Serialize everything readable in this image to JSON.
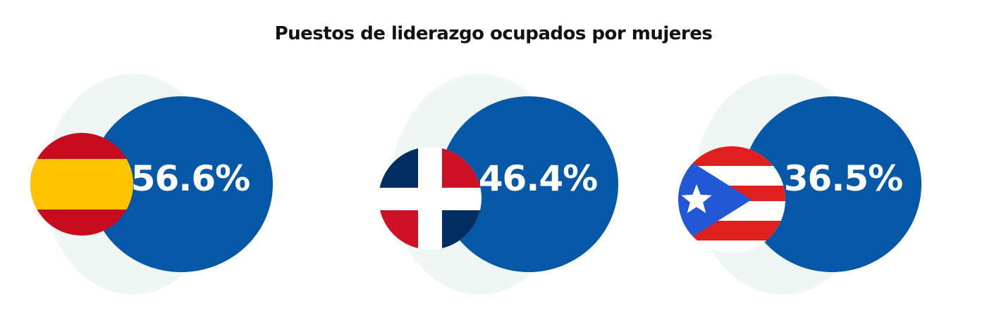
{
  "title": "Puestos de liderazgo ocupados por mujeres",
  "colors": {
    "circle": "#0557a7",
    "background_blob": "#eef7f3"
  },
  "chart_data": {
    "type": "bubble-stat",
    "title": "Puestos de liderazgo ocupados por mujeres",
    "unit": "%",
    "items": [
      {
        "flag": "spain-flag-icon",
        "value": 56.6,
        "label": "56.6%"
      },
      {
        "flag": "dominican-republic-flag-icon",
        "value": 46.4,
        "label": "46.4%"
      },
      {
        "flag": "puerto-rico-flag-icon",
        "value": 36.5,
        "label": "36.5%"
      }
    ]
  }
}
